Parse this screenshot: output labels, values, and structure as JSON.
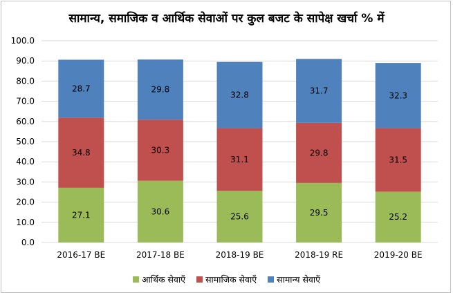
{
  "chart_data": {
    "type": "bar",
    "stacked": true,
    "title": "सामान्य, समाजिक व आर्थिक सेवाओं पर कुल बजट के सापेक्ष खर्चा % में",
    "categories": [
      "2016-17 BE",
      "2017-18 BE",
      "2018-19 BE",
      "2018-19 RE",
      "2019-20 BE"
    ],
    "series": [
      {
        "name": "आर्थिक सेवाएँ",
        "color": "#9bbb59",
        "values": [
          27.1,
          30.6,
          25.6,
          29.5,
          25.2
        ]
      },
      {
        "name": "सामाजिक सेवाएँ",
        "color": "#c0504d",
        "values": [
          34.8,
          30.3,
          31.1,
          29.8,
          31.5
        ]
      },
      {
        "name": "सामान्य सेवाएँ",
        "color": "#4f81bd",
        "values": [
          28.7,
          29.8,
          32.8,
          31.7,
          32.3
        ]
      }
    ],
    "yticks": [
      "0.0",
      "10.0",
      "20.0",
      "30.0",
      "40.0",
      "50.0",
      "60.0",
      "70.0",
      "80.0",
      "90.0",
      "100.0"
    ],
    "ylim": [
      0,
      100
    ],
    "grid": true,
    "legend": "bottom",
    "data_labels": true
  }
}
